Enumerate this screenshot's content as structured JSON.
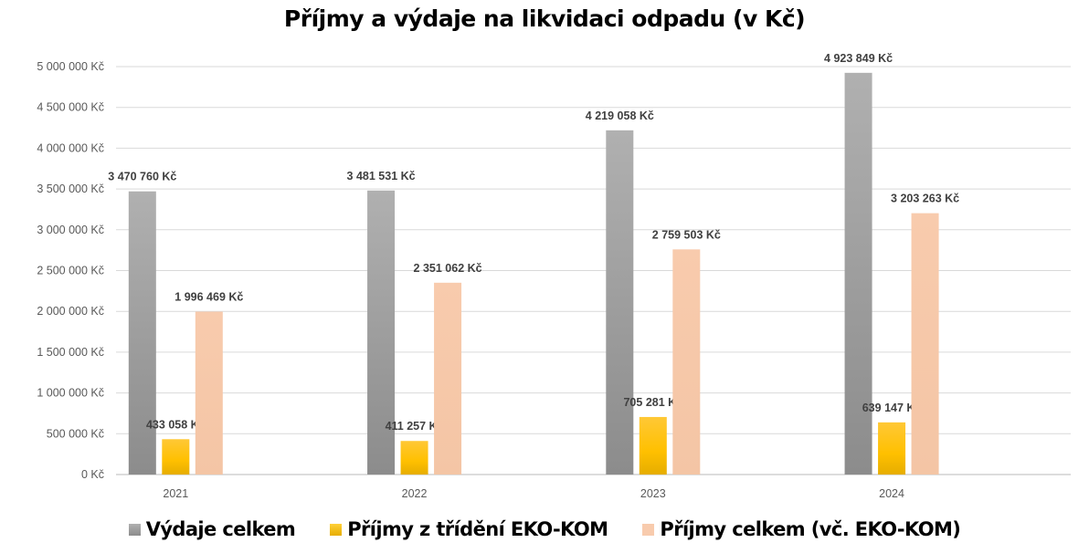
{
  "chart_data": {
    "type": "bar",
    "title": "Příjmy a výdaje na likvidaci odpadu (v Kč)",
    "categories": [
      "2021",
      "2022",
      "2023",
      "2024"
    ],
    "series": [
      {
        "name": "Výdaje celkem",
        "color": "#a6a6a6",
        "values": [
          3470760,
          3481531,
          4219058,
          4923849
        ],
        "labels": [
          "3 470 760 Kč",
          "3 481 531 Kč",
          "4 219 058 Kč",
          "4 923 849 Kč"
        ]
      },
      {
        "name": "Příjmy z třídění EKO-KOM",
        "color": "#ffc000",
        "values": [
          433058,
          411257,
          705281,
          639147
        ],
        "labels": [
          "433 058 Kč",
          "411 257 Kč",
          "705 281 Kč",
          "639 147 Kč"
        ]
      },
      {
        "name": "Příjmy celkem (vč. EKO-KOM)",
        "color": "#f8cbad",
        "values": [
          1996469,
          2351062,
          2759503,
          3203263
        ],
        "labels": [
          "1 996 469 Kč",
          "2 351 062 Kč",
          "2 759 503 Kč",
          "3 203 263 Kč"
        ]
      }
    ],
    "yticks": [
      "0 Kč",
      "500 000 Kč",
      "1 000 000 Kč",
      "1 500 000 Kč",
      "2 000 000 Kč",
      "2 500 000 Kč",
      "3 000 000 Kč",
      "3 500 000 Kč",
      "4 000 000 Kč",
      "4 500 000 Kč",
      "5 000 000 Kč"
    ],
    "ylim": [
      0,
      5000000
    ],
    "ystep": 500000,
    "grid": true,
    "legend": "bottom",
    "xlabel": "",
    "ylabel": ""
  }
}
